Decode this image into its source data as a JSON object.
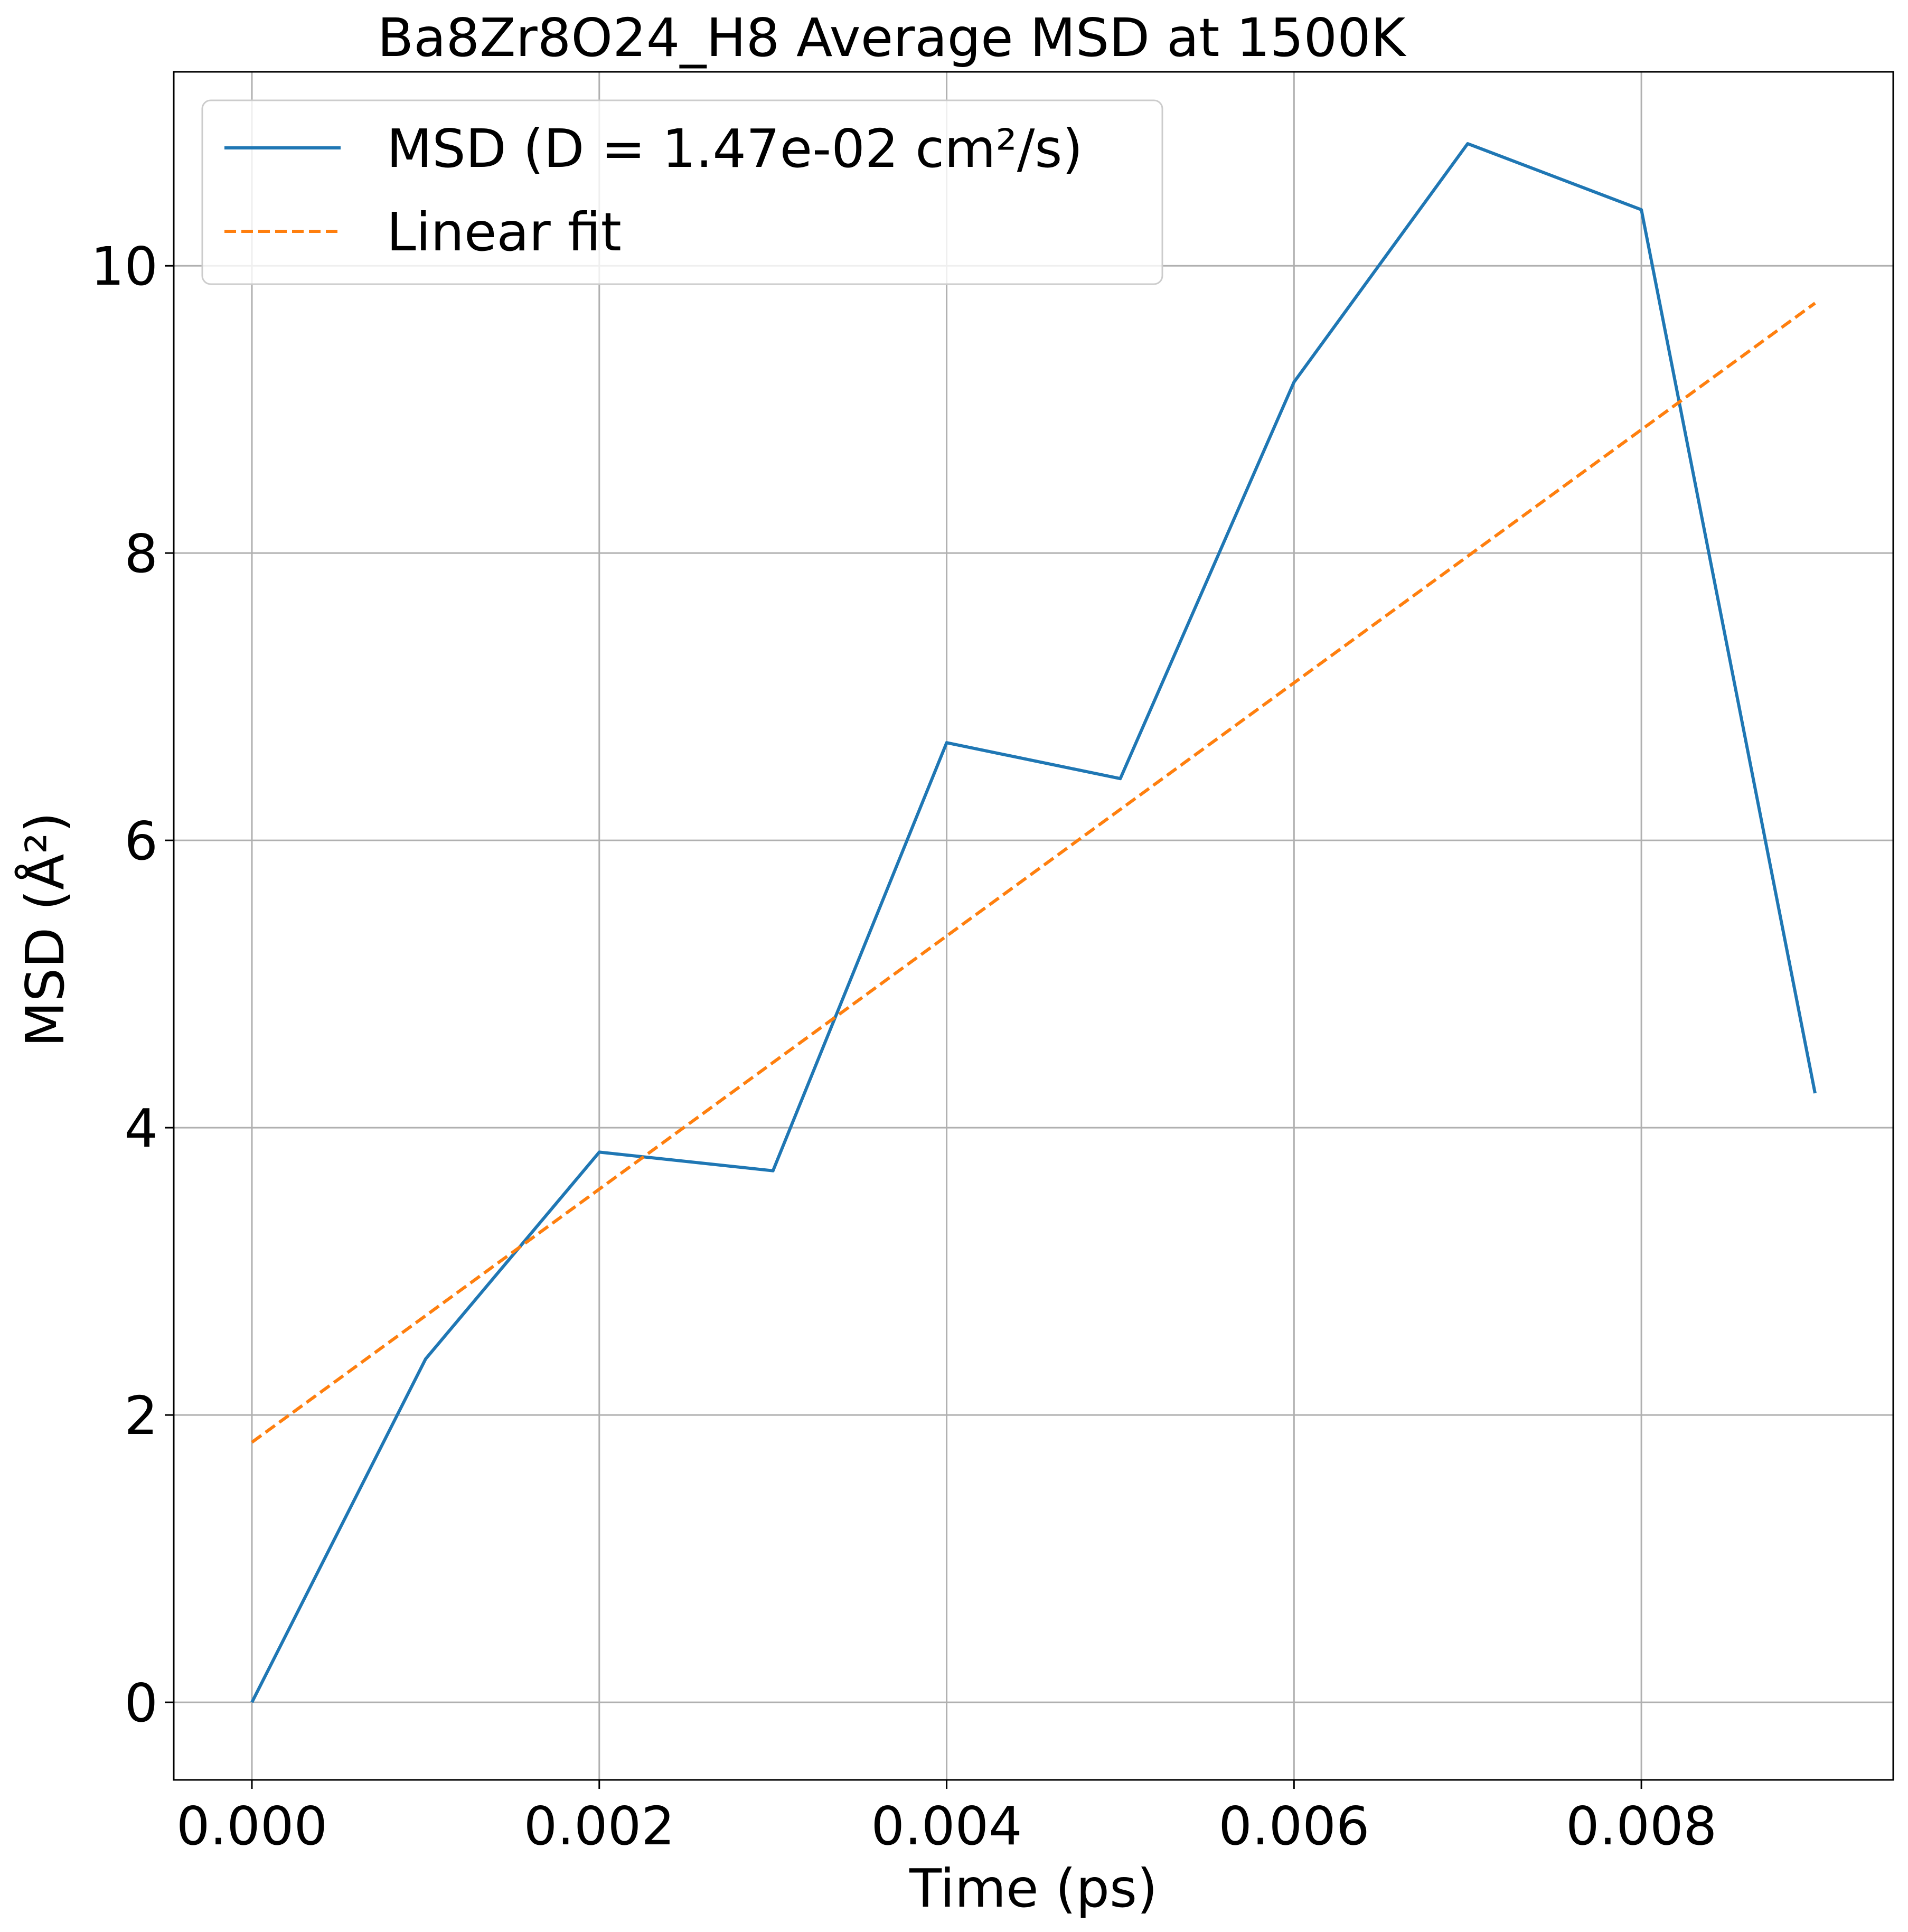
{
  "chart_data": {
    "type": "line",
    "title": "Ba8Zr8O24_H8 Average MSD at 1500K",
    "xlabel": "Time (ps)",
    "ylabel": "MSD (Å²)",
    "xlim": [
      -0.00045,
      0.00945
    ],
    "ylim": [
      -0.54,
      11.35
    ],
    "xticks": [
      0.0,
      0.002,
      0.004,
      0.006,
      0.008
    ],
    "xtick_labels": [
      "0.000",
      "0.002",
      "0.004",
      "0.006",
      "0.008"
    ],
    "yticks": [
      0,
      2,
      4,
      6,
      8,
      10
    ],
    "ytick_labels": [
      "0",
      "2",
      "4",
      "6",
      "8",
      "10"
    ],
    "grid": true,
    "legend_position": "top-left",
    "series": [
      {
        "name": "MSD (D = 1.47e-02 cm²/s)",
        "style": "solid",
        "color": "#1f77b4",
        "x": [
          0.0,
          0.001,
          0.002,
          0.003,
          0.004,
          0.005,
          0.006,
          0.007,
          0.008,
          0.009
        ],
        "y": [
          0.0,
          2.39,
          3.83,
          3.7,
          6.68,
          6.43,
          9.19,
          10.85,
          10.39,
          4.24
        ]
      },
      {
        "name": "Linear fit",
        "style": "dashed",
        "color": "#ff7f0e",
        "x": [
          0.0,
          0.009
        ],
        "y": [
          1.81,
          9.74
        ]
      }
    ]
  }
}
